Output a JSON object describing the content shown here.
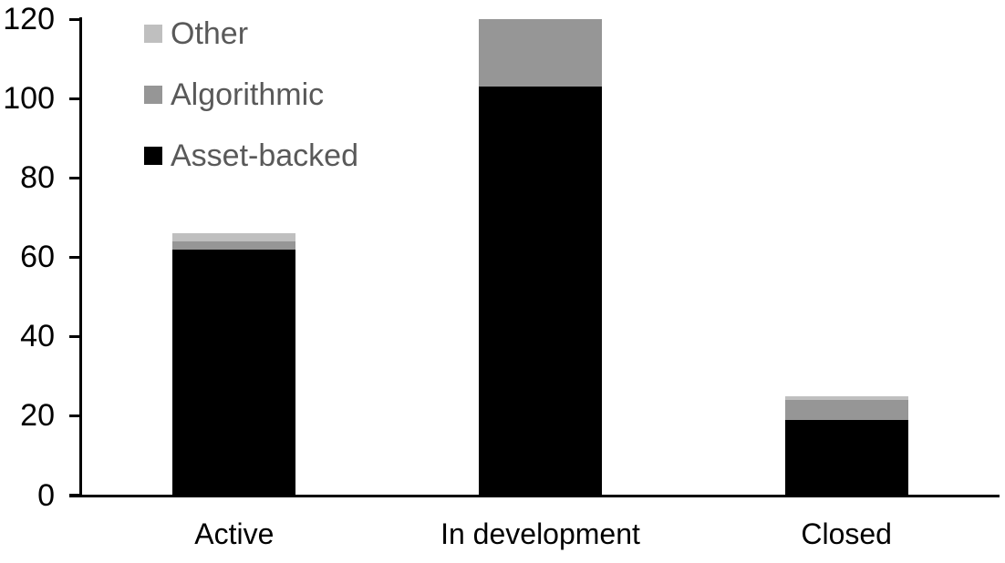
{
  "chart_data": {
    "type": "bar",
    "stacked": true,
    "title": "",
    "xlabel": "",
    "ylabel": "",
    "categories": [
      "Active",
      "In development",
      "Closed"
    ],
    "series": [
      {
        "name": "Asset-backed",
        "color": "#000000",
        "values": [
          62,
          103,
          19
        ]
      },
      {
        "name": "Algorithmic",
        "color": "#969696",
        "values": [
          2,
          17,
          5
        ]
      },
      {
        "name": "Other",
        "color": "#bfbfbf",
        "values": [
          2,
          0,
          1
        ]
      }
    ],
    "totals": [
      66,
      120,
      25
    ],
    "ylim": [
      0,
      120
    ],
    "yticks": [
      0,
      20,
      40,
      60,
      80,
      100,
      120
    ],
    "grid": false,
    "legend_position": "top-left",
    "legend_order": [
      "Other",
      "Algorithmic",
      "Asset-backed"
    ],
    "legend_text_color": "#595959",
    "axis_color": "#000000",
    "background_color": "#ffffff"
  }
}
